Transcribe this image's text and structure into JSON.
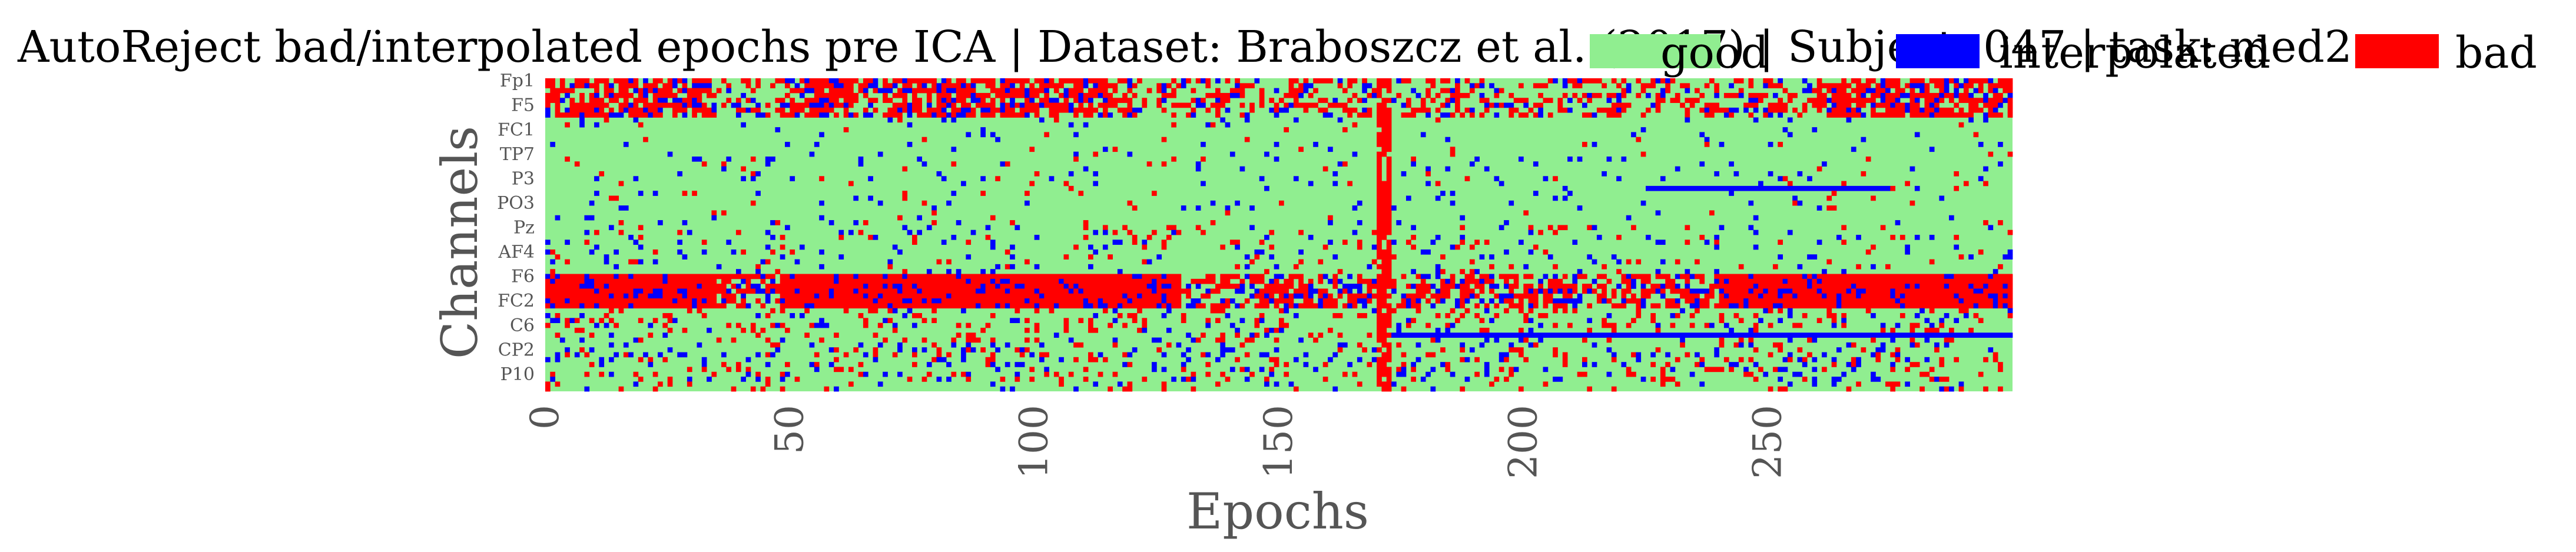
{
  "colors": {
    "good": "#90ee90",
    "interpolated": "#0000ff",
    "bad": "#ff0000"
  },
  "chart_data": {
    "type": "heatmap",
    "title": "AutoReject bad/interpolated epochs pre ICA | Dataset: Braboszcz et al. (2017) | Subject: 047 | task: med2",
    "xlabel": "Epochs",
    "ylabel": "Channels",
    "n_epochs": 300,
    "n_channels": 64,
    "xlim": [
      0,
      300
    ],
    "x_ticks": [
      0,
      50,
      100,
      150,
      200,
      250
    ],
    "y_tick_labels": [
      "Fp1",
      "F5",
      "FC1",
      "TP7",
      "P3",
      "PO3",
      "Pz",
      "AF4",
      "F6",
      "FC2",
      "C6",
      "CP2",
      "P10"
    ],
    "legend": {
      "placement": "top-right",
      "entries": [
        {
          "key": "good",
          "label": "good"
        },
        {
          "key": "interpolated",
          "label": "interpolated"
        },
        {
          "key": "bad",
          "label": "bad"
        }
      ]
    },
    "bad_epochs": [
      170,
      171,
      172
    ],
    "bands": [
      {
        "channel_range": [
          0,
          8
        ],
        "interpolated": 0.1,
        "bad": 0.3,
        "dense_epochs": [
          [
            0,
            35
          ],
          [
            48,
            120
          ],
          [
            260,
            300
          ]
        ]
      },
      {
        "channel_range": [
          8,
          30
        ],
        "interpolated": 0.03,
        "bad": 0.02
      },
      {
        "channel_range": [
          30,
          40
        ],
        "interpolated": 0.06,
        "bad": 0.04
      },
      {
        "channel_range": [
          40,
          47
        ],
        "interpolated": 0.15,
        "bad": 0.45,
        "dense_epochs": [
          [
            0,
            35
          ],
          [
            48,
            130
          ],
          [
            240,
            300
          ]
        ]
      },
      {
        "channel_range": [
          47,
          53
        ],
        "interpolated": 0.05,
        "bad": 0.12
      },
      {
        "channel_range": [
          53,
          64
        ],
        "interpolated": 0.07,
        "bad": 0.1
      }
    ],
    "interpolated_lines": [
      {
        "channel": 52,
        "epoch_range": [
          170,
          300
        ]
      },
      {
        "channel": 22,
        "epoch_range": [
          225,
          275
        ]
      }
    ]
  }
}
